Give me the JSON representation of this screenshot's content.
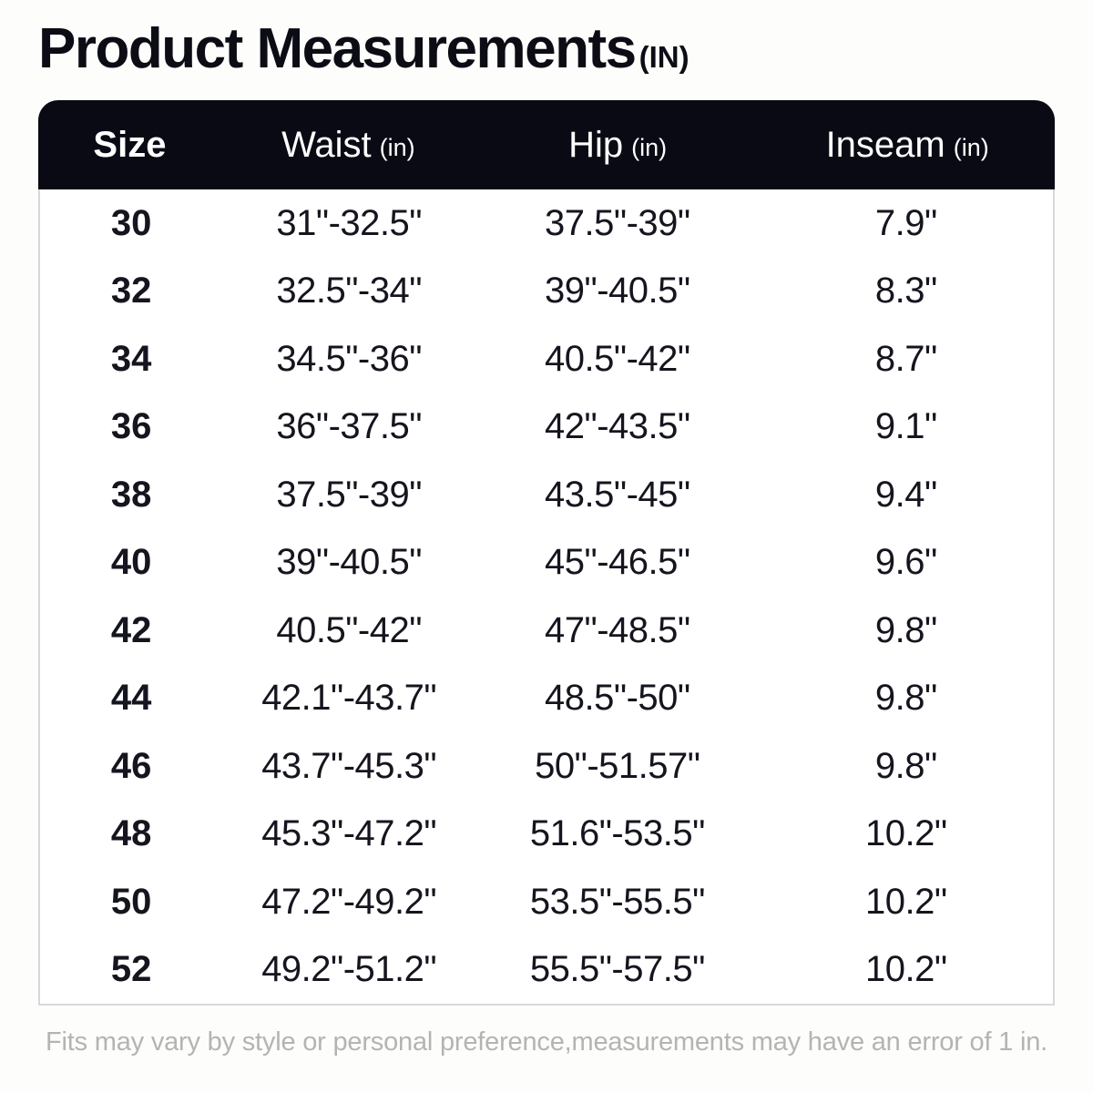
{
  "title": {
    "text": "Product Measurements",
    "unit": "(IN)"
  },
  "table": {
    "columns": [
      {
        "label": "Size",
        "unit": ""
      },
      {
        "label": "Waist",
        "unit": "(in)"
      },
      {
        "label": "Hip",
        "unit": "(in)"
      },
      {
        "label": "Inseam",
        "unit": "(in)"
      }
    ],
    "rows": [
      {
        "size": "30",
        "waist": "31\"-32.5\"",
        "hip": "37.5\"-39\"",
        "inseam": "7.9\""
      },
      {
        "size": "32",
        "waist": "32.5\"-34\"",
        "hip": "39\"-40.5\"",
        "inseam": "8.3\""
      },
      {
        "size": "34",
        "waist": "34.5\"-36\"",
        "hip": "40.5\"-42\"",
        "inseam": "8.7\""
      },
      {
        "size": "36",
        "waist": "36\"-37.5\"",
        "hip": "42\"-43.5\"",
        "inseam": "9.1\""
      },
      {
        "size": "38",
        "waist": "37.5\"-39\"",
        "hip": "43.5\"-45\"",
        "inseam": "9.4\""
      },
      {
        "size": "40",
        "waist": "39\"-40.5\"",
        "hip": "45\"-46.5\"",
        "inseam": "9.6\""
      },
      {
        "size": "42",
        "waist": "40.5\"-42\"",
        "hip": "47\"-48.5\"",
        "inseam": "9.8\""
      },
      {
        "size": "44",
        "waist": "42.1\"-43.7\"",
        "hip": "48.5\"-50\"",
        "inseam": "9.8\""
      },
      {
        "size": "46",
        "waist": "43.7\"-45.3\"",
        "hip": "50\"-51.57\"",
        "inseam": "9.8\""
      },
      {
        "size": "48",
        "waist": "45.3\"-47.2\"",
        "hip": "51.6\"-53.5\"",
        "inseam": "10.2\""
      },
      {
        "size": "50",
        "waist": "47.2\"-49.2\"",
        "hip": "53.5\"-55.5\"",
        "inseam": "10.2\""
      },
      {
        "size": "52",
        "waist": "49.2\"-51.2\"",
        "hip": "55.5\"-57.5\"",
        "inseam": "10.2\""
      }
    ]
  },
  "footer": {
    "note": "Fits may vary by style or personal preference,measurements may have an error of 1 in."
  },
  "colors": {
    "page_bg": "#fdfdfc",
    "header_bg": "#0a0a14",
    "header_text": "#ffffff",
    "body_text": "#15151f",
    "border": "#d8d8d8",
    "footer_text": "#b4b4b4"
  }
}
